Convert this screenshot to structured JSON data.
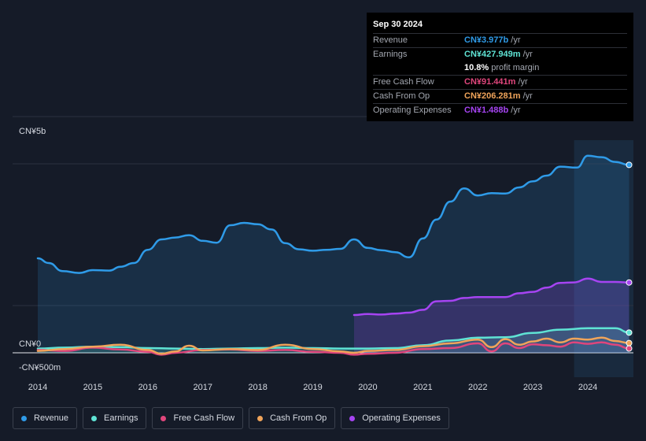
{
  "tooltip": {
    "date": "Sep 30 2024",
    "rows": [
      {
        "label": "Revenue",
        "value": "CN¥3.977b",
        "unit": "/yr",
        "color": "#2f9be8"
      },
      {
        "label": "Earnings",
        "value": "CN¥427.949m",
        "unit": "/yr",
        "color": "#5fe3d4"
      },
      {
        "label": "",
        "value": "10.8%",
        "unit": "profit margin",
        "color": "#ffffff"
      },
      {
        "label": "Free Cash Flow",
        "value": "CN¥91.441m",
        "unit": "/yr",
        "color": "#e0467c"
      },
      {
        "label": "Cash From Op",
        "value": "CN¥206.281m",
        "unit": "/yr",
        "color": "#f0a45a"
      },
      {
        "label": "Operating Expenses",
        "value": "CN¥1.488b",
        "unit": "/yr",
        "color": "#a644f2"
      }
    ]
  },
  "legend": [
    {
      "label": "Revenue",
      "color": "#2f9be8"
    },
    {
      "label": "Earnings",
      "color": "#5fe3d4"
    },
    {
      "label": "Free Cash Flow",
      "color": "#e0467c"
    },
    {
      "label": "Cash From Op",
      "color": "#f0a45a"
    },
    {
      "label": "Operating Expenses",
      "color": "#a644f2"
    }
  ],
  "chart_data": {
    "type": "area",
    "y_tick_labels": [
      {
        "label": "CN¥5b",
        "value": 5000
      },
      {
        "label": "CN¥0",
        "value": 0
      },
      {
        "label": "-CN¥500m",
        "value": -500
      }
    ],
    "ylim": [
      -500,
      5000
    ],
    "xlim": [
      2014,
      2024.8
    ],
    "x_tick_labels": [
      "2014",
      "2015",
      "2016",
      "2017",
      "2018",
      "2019",
      "2020",
      "2021",
      "2022",
      "2023",
      "2024"
    ],
    "grid": true,
    "highlight_from": 2023.75,
    "series": [
      {
        "name": "Revenue",
        "color": "#2f9be8",
        "area": true,
        "points": [
          [
            2014.0,
            2000
          ],
          [
            2014.2,
            1900
          ],
          [
            2014.45,
            1730
          ],
          [
            2014.75,
            1690
          ],
          [
            2015.0,
            1750
          ],
          [
            2015.3,
            1740
          ],
          [
            2015.5,
            1820
          ],
          [
            2015.75,
            1900
          ],
          [
            2016.0,
            2180
          ],
          [
            2016.25,
            2400
          ],
          [
            2016.5,
            2440
          ],
          [
            2016.75,
            2490
          ],
          [
            2017.0,
            2370
          ],
          [
            2017.25,
            2330
          ],
          [
            2017.5,
            2700
          ],
          [
            2017.75,
            2750
          ],
          [
            2018.0,
            2720
          ],
          [
            2018.25,
            2610
          ],
          [
            2018.5,
            2320
          ],
          [
            2018.75,
            2190
          ],
          [
            2019.0,
            2160
          ],
          [
            2019.25,
            2180
          ],
          [
            2019.5,
            2200
          ],
          [
            2019.75,
            2400
          ],
          [
            2020.0,
            2220
          ],
          [
            2020.25,
            2170
          ],
          [
            2020.5,
            2130
          ],
          [
            2020.75,
            2020
          ],
          [
            2021.0,
            2420
          ],
          [
            2021.25,
            2820
          ],
          [
            2021.5,
            3200
          ],
          [
            2021.75,
            3480
          ],
          [
            2022.0,
            3330
          ],
          [
            2022.25,
            3380
          ],
          [
            2022.5,
            3370
          ],
          [
            2022.75,
            3500
          ],
          [
            2023.0,
            3630
          ],
          [
            2023.25,
            3750
          ],
          [
            2023.5,
            3940
          ],
          [
            2023.8,
            3920
          ],
          [
            2024.0,
            4170
          ],
          [
            2024.25,
            4140
          ],
          [
            2024.5,
            4040
          ],
          [
            2024.75,
            3977
          ]
        ]
      },
      {
        "name": "Operating Expenses",
        "color": "#a644f2",
        "area": true,
        "points": [
          [
            2019.75,
            800
          ],
          [
            2020.0,
            820
          ],
          [
            2020.25,
            810
          ],
          [
            2020.5,
            830
          ],
          [
            2020.75,
            850
          ],
          [
            2021.0,
            910
          ],
          [
            2021.25,
            1090
          ],
          [
            2021.5,
            1100
          ],
          [
            2021.75,
            1160
          ],
          [
            2022.0,
            1180
          ],
          [
            2022.25,
            1180
          ],
          [
            2022.5,
            1180
          ],
          [
            2022.75,
            1260
          ],
          [
            2023.0,
            1290
          ],
          [
            2023.25,
            1380
          ],
          [
            2023.5,
            1480
          ],
          [
            2023.75,
            1490
          ],
          [
            2024.0,
            1570
          ],
          [
            2024.25,
            1500
          ],
          [
            2024.5,
            1500
          ],
          [
            2024.75,
            1488
          ]
        ]
      },
      {
        "name": "Earnings",
        "color": "#5fe3d4",
        "area": true,
        "points": [
          [
            2014.0,
            90
          ],
          [
            2014.5,
            110
          ],
          [
            2015.0,
            130
          ],
          [
            2015.5,
            120
          ],
          [
            2016.0,
            100
          ],
          [
            2016.5,
            90
          ],
          [
            2017.0,
            80
          ],
          [
            2017.5,
            90
          ],
          [
            2018.0,
            100
          ],
          [
            2018.5,
            110
          ],
          [
            2019.0,
            100
          ],
          [
            2019.5,
            90
          ],
          [
            2020.0,
            90
          ],
          [
            2020.5,
            100
          ],
          [
            2021.0,
            160
          ],
          [
            2021.5,
            260
          ],
          [
            2022.0,
            320
          ],
          [
            2022.5,
            330
          ],
          [
            2023.0,
            420
          ],
          [
            2023.5,
            490
          ],
          [
            2024.0,
            520
          ],
          [
            2024.5,
            520
          ],
          [
            2024.75,
            428
          ]
        ]
      },
      {
        "name": "Free Cash Flow",
        "color": "#e0467c",
        "area": false,
        "points": [
          [
            2014.0,
            60
          ],
          [
            2014.5,
            40
          ],
          [
            2015.0,
            110
          ],
          [
            2015.5,
            70
          ],
          [
            2016.0,
            20
          ],
          [
            2016.25,
            -40
          ],
          [
            2016.5,
            0
          ],
          [
            2017.0,
            60
          ],
          [
            2017.5,
            70
          ],
          [
            2018.0,
            40
          ],
          [
            2018.5,
            60
          ],
          [
            2019.0,
            20
          ],
          [
            2019.5,
            0
          ],
          [
            2019.75,
            -40
          ],
          [
            2020.0,
            -20
          ],
          [
            2020.5,
            0
          ],
          [
            2021.0,
            80
          ],
          [
            2021.5,
            100
          ],
          [
            2022.0,
            200
          ],
          [
            2022.25,
            30
          ],
          [
            2022.5,
            200
          ],
          [
            2022.75,
            100
          ],
          [
            2023.0,
            180
          ],
          [
            2023.25,
            160
          ],
          [
            2023.5,
            130
          ],
          [
            2023.75,
            220
          ],
          [
            2024.0,
            190
          ],
          [
            2024.25,
            220
          ],
          [
            2024.5,
            170
          ],
          [
            2024.75,
            91
          ]
        ]
      },
      {
        "name": "Cash From Op",
        "color": "#f0a45a",
        "area": false,
        "points": [
          [
            2014.0,
            40
          ],
          [
            2014.5,
            80
          ],
          [
            2015.0,
            130
          ],
          [
            2015.5,
            170
          ],
          [
            2016.0,
            60
          ],
          [
            2016.25,
            -20
          ],
          [
            2016.5,
            30
          ],
          [
            2016.75,
            150
          ],
          [
            2017.0,
            50
          ],
          [
            2017.5,
            80
          ],
          [
            2018.0,
            60
          ],
          [
            2018.5,
            170
          ],
          [
            2019.0,
            80
          ],
          [
            2019.5,
            30
          ],
          [
            2019.75,
            0
          ],
          [
            2020.0,
            40
          ],
          [
            2020.5,
            60
          ],
          [
            2021.0,
            140
          ],
          [
            2021.5,
            200
          ],
          [
            2022.0,
            280
          ],
          [
            2022.25,
            120
          ],
          [
            2022.5,
            290
          ],
          [
            2022.75,
            170
          ],
          [
            2023.0,
            240
          ],
          [
            2023.25,
            300
          ],
          [
            2023.5,
            220
          ],
          [
            2023.75,
            300
          ],
          [
            2024.0,
            280
          ],
          [
            2024.25,
            320
          ],
          [
            2024.5,
            250
          ],
          [
            2024.75,
            206
          ]
        ]
      }
    ]
  }
}
